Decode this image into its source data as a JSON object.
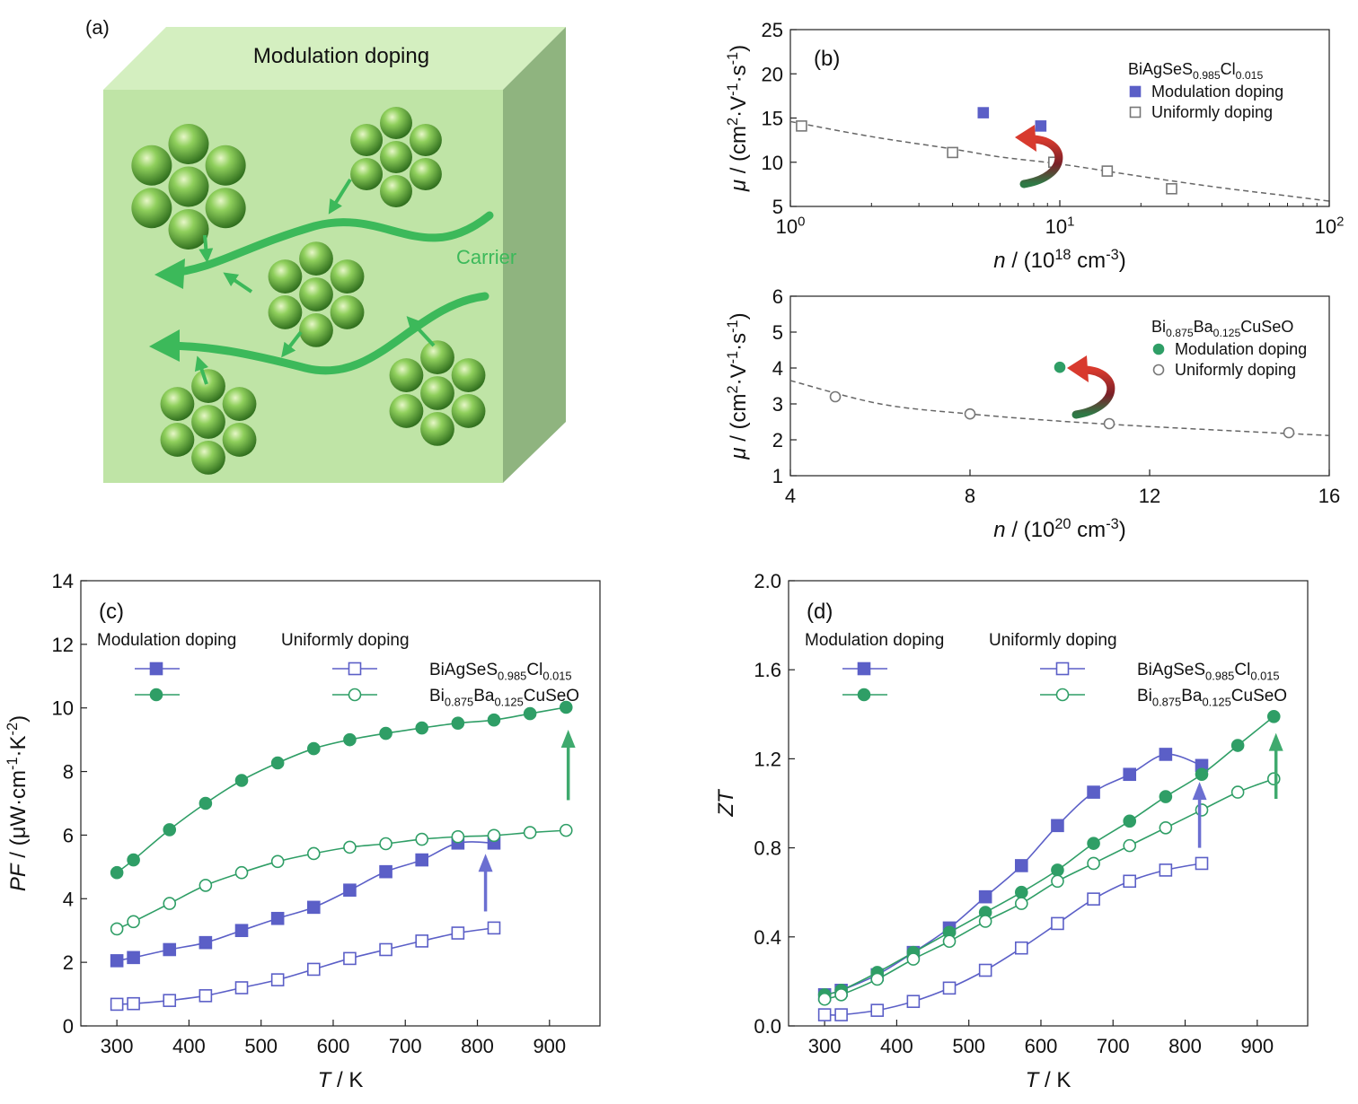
{
  "panel_a": {
    "label": "(a)",
    "title": "Modulation doping",
    "carrier_label": "Carrier",
    "colors": {
      "front": "#bfe4a6",
      "top": "#d4efc0",
      "side": "#8fb47f",
      "arrow": "#3cb95a",
      "sphere": "#55a033"
    }
  },
  "chart_data": [
    {
      "id": "b_top",
      "type": "scatter",
      "panel_label": "(b)",
      "xscale": "log",
      "xlim": [
        1,
        100
      ],
      "ylim": [
        5,
        25
      ],
      "xticks": [
        "10^0",
        "10^1",
        "10^2"
      ],
      "yticks": [
        5,
        10,
        15,
        20,
        25
      ],
      "xlabel": "n / (10^18 cm^-3)",
      "ylabel": "μ / (cm^2·V^-1·s^-1)",
      "legend_title": "BiAgSeS0.985Cl0.015",
      "series": [
        {
          "name": "Modulation doping",
          "marker": "square-filled",
          "color": "#5b5fc7",
          "x": [
            5.2,
            8.5
          ],
          "y": [
            15.6,
            14.1
          ]
        },
        {
          "name": "Uniformly doping",
          "marker": "square-open",
          "color": "#777777",
          "x": [
            1.1,
            4.0,
            9.5,
            15.0,
            26.0
          ],
          "y": [
            14.1,
            11.1,
            10.0,
            9.0,
            7.0
          ]
        }
      ],
      "fit": {
        "x": [
          1,
          2,
          4,
          6,
          10,
          20,
          40,
          70,
          100
        ],
        "y": [
          14.6,
          12.9,
          11.5,
          10.6,
          9.8,
          8.4,
          7.1,
          6.2,
          5.6
        ]
      }
    },
    {
      "id": "b_bottom",
      "type": "scatter",
      "xlim": [
        4,
        16
      ],
      "ylim": [
        1,
        6
      ],
      "xticks": [
        4,
        8,
        12,
        16
      ],
      "yticks": [
        1,
        2,
        3,
        4,
        5,
        6
      ],
      "xlabel": "n / (10^20 cm^-3)",
      "ylabel": "μ / (cm^2·V^-1·s^-1)",
      "legend_title": "Bi0.875Ba0.125CuSeO",
      "series": [
        {
          "name": "Modulation doping",
          "marker": "circle-filled",
          "color": "#2f9e66",
          "x": [
            10.0
          ],
          "y": [
            4.02
          ]
        },
        {
          "name": "Uniformly doping",
          "marker": "circle-open",
          "color": "#777777",
          "x": [
            5.0,
            8.0,
            11.1,
            15.1
          ],
          "y": [
            3.2,
            2.72,
            2.45,
            2.2
          ]
        }
      ],
      "fit": {
        "x": [
          4,
          6,
          8,
          10,
          12,
          14,
          16
        ],
        "y": [
          3.65,
          3.0,
          2.72,
          2.52,
          2.37,
          2.24,
          2.12
        ]
      }
    },
    {
      "id": "c",
      "type": "line",
      "panel_label": "(c)",
      "xlim": [
        250,
        970
      ],
      "ylim": [
        0,
        14
      ],
      "xticks": [
        300,
        400,
        500,
        600,
        700,
        800,
        900
      ],
      "yticks": [
        0,
        2,
        4,
        6,
        8,
        10,
        12,
        14
      ],
      "xlabel": "T / K",
      "ylabel": "PF / (μW·cm^-1·K^-2)",
      "legend": {
        "col1": "Modulation doping",
        "col2": "Uniformly doping",
        "row1": "BiAgSeS0.985Cl0.015",
        "row2": "Bi0.875Ba0.125CuSeO"
      },
      "series": [
        {
          "name": "BiAgSeS0.985Cl0.015 modulation",
          "marker": "square-filled",
          "color": "#5b5fc7",
          "x": [
            300,
            323,
            373,
            423,
            473,
            523,
            573,
            623,
            673,
            723,
            773,
            823
          ],
          "y": [
            2.05,
            2.15,
            2.4,
            2.62,
            3.0,
            3.38,
            3.73,
            4.27,
            4.85,
            5.22,
            5.75,
            5.75
          ]
        },
        {
          "name": "BiAgSeS0.985Cl0.015 uniform",
          "marker": "square-open",
          "color": "#5b5fc7",
          "x": [
            300,
            323,
            373,
            423,
            473,
            523,
            573,
            623,
            673,
            723,
            773,
            823
          ],
          "y": [
            0.68,
            0.7,
            0.8,
            0.95,
            1.2,
            1.45,
            1.78,
            2.12,
            2.4,
            2.67,
            2.92,
            3.08
          ]
        },
        {
          "name": "Bi0.875Ba0.125CuSeO modulation",
          "marker": "circle-filled",
          "color": "#2f9e66",
          "x": [
            300,
            323,
            373,
            423,
            473,
            523,
            573,
            623,
            673,
            723,
            773,
            823,
            873,
            923
          ],
          "y": [
            4.82,
            5.22,
            6.17,
            7.0,
            7.72,
            8.27,
            8.72,
            9.0,
            9.2,
            9.37,
            9.52,
            9.62,
            9.82,
            10.02
          ]
        },
        {
          "name": "Bi0.875Ba0.125CuSeO uniform",
          "marker": "circle-open",
          "color": "#2f9e66",
          "x": [
            300,
            323,
            373,
            423,
            473,
            523,
            573,
            623,
            673,
            723,
            773,
            823,
            873,
            923
          ],
          "y": [
            3.05,
            3.28,
            3.85,
            4.42,
            4.82,
            5.17,
            5.42,
            5.62,
            5.73,
            5.87,
            5.95,
            5.99,
            6.08,
            6.15
          ]
        }
      ]
    },
    {
      "id": "d",
      "type": "line",
      "panel_label": "(d)",
      "xlim": [
        250,
        970
      ],
      "ylim": [
        0,
        2.0
      ],
      "xticks": [
        300,
        400,
        500,
        600,
        700,
        800,
        900
      ],
      "yticks": [
        "0.0",
        "0.4",
        "0.8",
        "1.2",
        "1.6",
        "2.0"
      ],
      "xlabel": "T / K",
      "ylabel": "ZT",
      "legend": {
        "col1": "Modulation doping",
        "col2": "Uniformly doping",
        "row1": "BiAgSeS0.985Cl0.015",
        "row2": "Bi0.875Ba0.125CuSeO"
      },
      "series": [
        {
          "name": "BiAgSeS0.985Cl0.015 modulation",
          "marker": "square-filled",
          "color": "#5b5fc7",
          "x": [
            300,
            323,
            373,
            423,
            473,
            523,
            573,
            623,
            673,
            723,
            773,
            823
          ],
          "y": [
            0.14,
            0.16,
            0.23,
            0.33,
            0.44,
            0.58,
            0.72,
            0.9,
            1.05,
            1.13,
            1.22,
            1.17
          ]
        },
        {
          "name": "BiAgSeS0.985Cl0.015 uniform",
          "marker": "square-open",
          "color": "#5b5fc7",
          "x": [
            300,
            323,
            373,
            423,
            473,
            523,
            573,
            623,
            673,
            723,
            773,
            823
          ],
          "y": [
            0.05,
            0.05,
            0.07,
            0.11,
            0.17,
            0.25,
            0.35,
            0.46,
            0.57,
            0.65,
            0.7,
            0.73
          ]
        },
        {
          "name": "Bi0.875Ba0.125CuSeO modulation",
          "marker": "circle-filled",
          "color": "#2f9e66",
          "x": [
            300,
            323,
            373,
            423,
            473,
            523,
            573,
            623,
            673,
            723,
            773,
            823,
            873,
            923
          ],
          "y": [
            0.14,
            0.16,
            0.24,
            0.33,
            0.42,
            0.51,
            0.6,
            0.7,
            0.82,
            0.92,
            1.03,
            1.13,
            1.26,
            1.39
          ]
        },
        {
          "name": "Bi0.875Ba0.125CuSeO uniform",
          "marker": "circle-open",
          "color": "#2f9e66",
          "x": [
            300,
            323,
            373,
            423,
            473,
            523,
            573,
            623,
            673,
            723,
            773,
            823,
            873,
            923
          ],
          "y": [
            0.12,
            0.14,
            0.21,
            0.3,
            0.38,
            0.47,
            0.55,
            0.65,
            0.73,
            0.81,
            0.89,
            0.97,
            1.05,
            1.11
          ]
        }
      ]
    }
  ]
}
